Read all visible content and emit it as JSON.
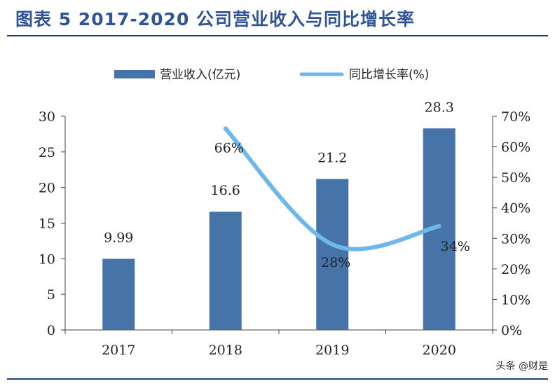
{
  "figure": {
    "title": "图表 5 2017-2020 公司营业收入与同比增长率",
    "watermark": "头条 @财是"
  },
  "colors": {
    "bar": "#4674a9",
    "line": "#6db7ea",
    "title": "#2f5597",
    "rule": "#1f3f7a"
  },
  "chart_data": {
    "type": "bar",
    "categories": [
      "2017",
      "2018",
      "2019",
      "2020"
    ],
    "series": [
      {
        "name": "营业收入(亿元)",
        "type": "bar",
        "axis": "left",
        "values": [
          9.99,
          16.6,
          21.2,
          28.3
        ],
        "labels": [
          "9.99",
          "16.6",
          "21.2",
          "28.3"
        ]
      },
      {
        "name": "同比增长率(%)",
        "type": "line",
        "smooth": true,
        "axis": "right",
        "x": [
          "2018",
          "2019",
          "2020"
        ],
        "values": [
          66,
          28,
          34
        ],
        "labels": [
          "66%",
          "28%",
          "34%"
        ]
      }
    ],
    "y_left": {
      "min": 0,
      "max": 30,
      "ticks": [
        "0",
        "5",
        "10",
        "15",
        "20",
        "25",
        "30"
      ]
    },
    "y_right": {
      "min": 0,
      "max": 70,
      "ticks": [
        "0%",
        "10%",
        "20%",
        "30%",
        "40%",
        "50%",
        "60%",
        "70%"
      ]
    },
    "grid": false,
    "legend": "top"
  }
}
